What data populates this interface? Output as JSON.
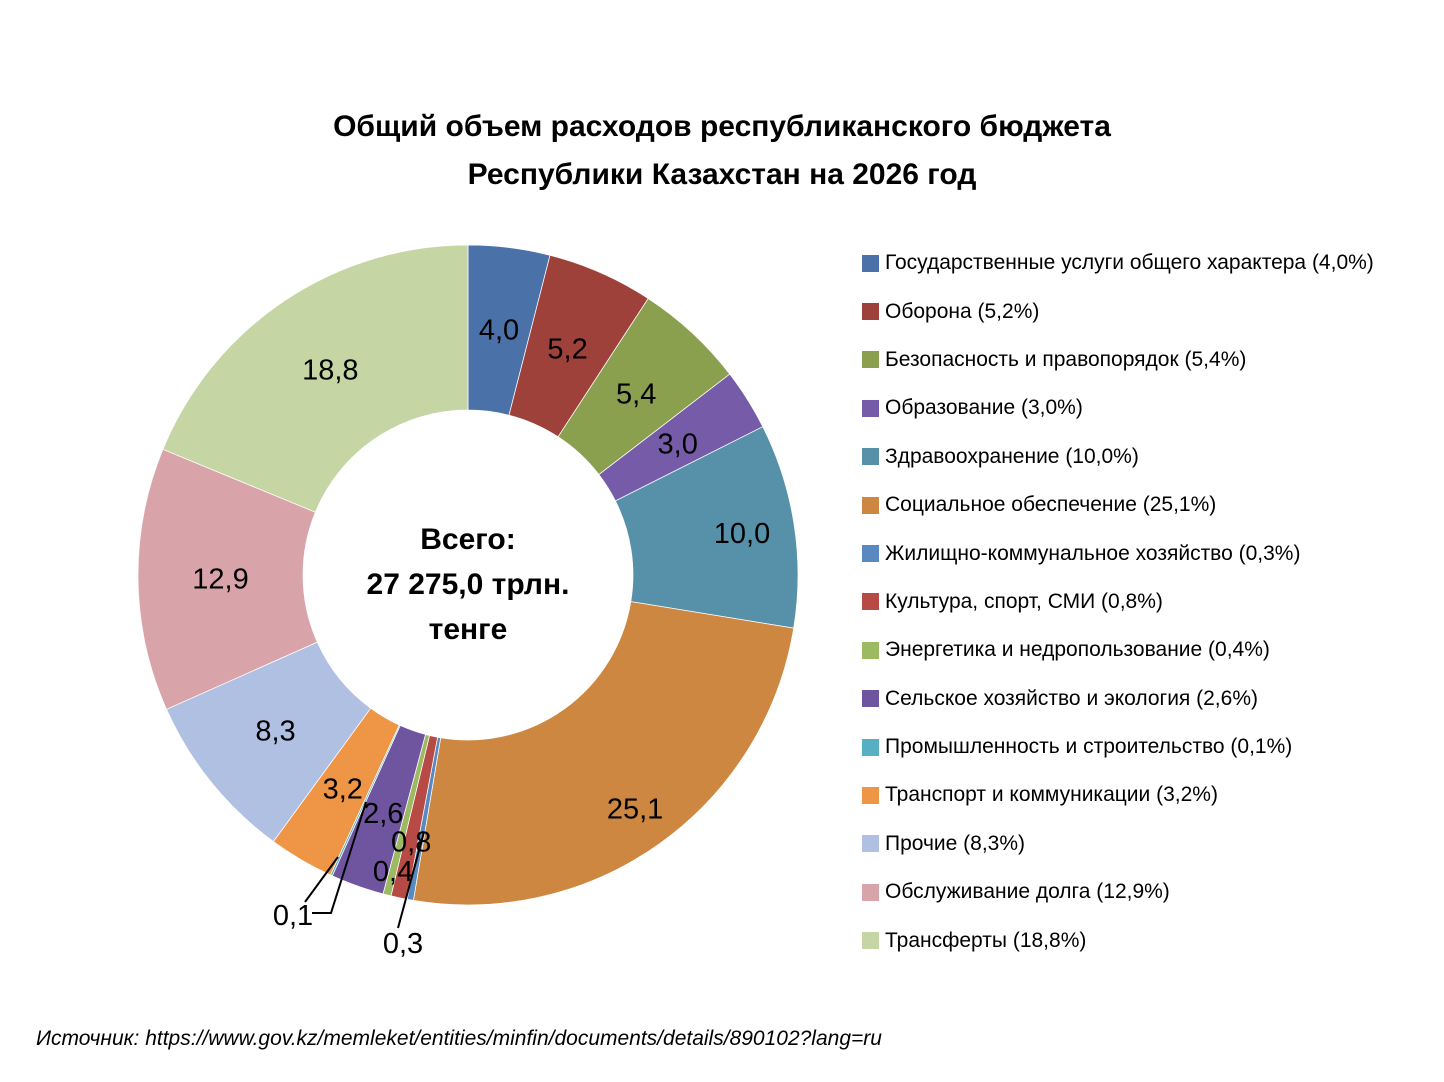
{
  "chart_data": {
    "type": "pie",
    "subtype": "donut",
    "title_lines": [
      "Общий объем расходов республиканского бюджета",
      "Республики Казахстан на 2026 год"
    ],
    "center_label_lines": [
      "Всего:",
      "27 275,0 трлн.",
      "тенге"
    ],
    "unit": "%",
    "legend_position": "right",
    "slices": [
      {
        "name": "Государственные услуги общего характера",
        "value": 4.0,
        "value_label": "4,0",
        "legend_label": "Государственные услуги общего характера (4,0%)",
        "color": "#4A72A8"
      },
      {
        "name": "Оборона",
        "value": 5.2,
        "value_label": "5,2",
        "legend_label": "Оборона (5,2%)",
        "color": "#9E413A"
      },
      {
        "name": "Безопасность и правопорядок",
        "value": 5.4,
        "value_label": "5,4",
        "legend_label": "Безопасность и правопорядок (5,4%)",
        "color": "#8AA04F"
      },
      {
        "name": "Образование",
        "value": 3.0,
        "value_label": "3,0",
        "legend_label": "Образование (3,0%)",
        "color": "#765CA8"
      },
      {
        "name": "Здравоохранение",
        "value": 10.0,
        "value_label": "10,0",
        "legend_label": "Здравоохранение (10,0%)",
        "color": "#5790A9"
      },
      {
        "name": "Социальное обеспечение",
        "value": 25.1,
        "value_label": "25,1",
        "legend_label": "Социальное обеспечение (25,1%)",
        "color": "#CD8741"
      },
      {
        "name": "Жилищно-коммунальное хозяйство",
        "value": 0.3,
        "value_label": "0,3",
        "legend_label": "Жилищно-коммунальное хозяйство (0,3%)",
        "color": "#5989C0"
      },
      {
        "name": "Культура, спорт, СМИ",
        "value": 0.8,
        "value_label": "0,8",
        "legend_label": "Культура, спорт, СМИ (0,8%)",
        "color": "#B74A44"
      },
      {
        "name": "Энергетика и недропользование",
        "value": 0.4,
        "value_label": "0,4",
        "legend_label": "Энергетика и недропользование (0,4%)",
        "color": "#9CBA62"
      },
      {
        "name": "Сельское хозяйство и экология",
        "value": 2.6,
        "value_label": "2,6",
        "legend_label": "Сельское хозяйство и экология (2,6%)",
        "color": "#6F54A0"
      },
      {
        "name": "Промышленность и строительство",
        "value": 0.1,
        "value_label": "0,1",
        "legend_label": "Промышленность и строительство (0,1%)",
        "color": "#57AFC4"
      },
      {
        "name": "Транспорт и коммуникации",
        "value": 3.2,
        "value_label": "3,2",
        "legend_label": "Транспорт и коммуникации (3,2%)",
        "color": "#EE9546"
      },
      {
        "name": "Прочие",
        "value": 8.3,
        "value_label": "8,3",
        "legend_label": "Прочие (8,3%)",
        "color": "#AFC0E2"
      },
      {
        "name": "Обслуживание долга",
        "value": 12.9,
        "value_label": "12,9",
        "legend_label": "Обслуживание долга (12,9%)",
        "color": "#D9A4A9"
      },
      {
        "name": "Трансферты",
        "value": 18.8,
        "value_label": "18,8",
        "legend_label": "Трансферты (18,8%)",
        "color": "#C6D5A4"
      }
    ]
  },
  "source": "Источник: https://www.gov.kz/memleket/entities/minfin/documents/details/890102?lang=ru"
}
